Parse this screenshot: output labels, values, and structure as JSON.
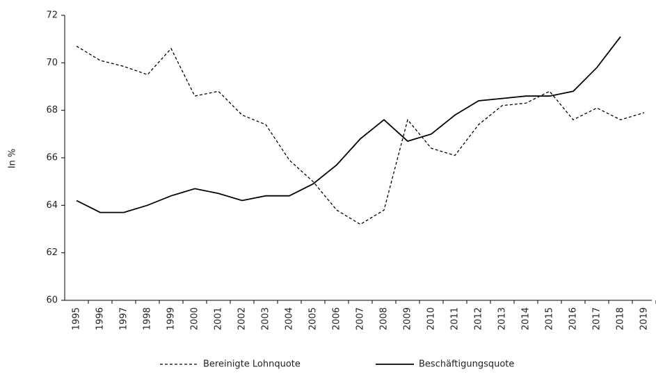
{
  "chart_data": {
    "type": "line",
    "y_label": "In %",
    "categories": [
      "1995",
      "1996",
      "1997",
      "1998",
      "1999",
      "2000",
      "2001",
      "2002",
      "2003",
      "2004",
      "2005",
      "2006",
      "2007",
      "2008",
      "2009",
      "2010",
      "2011",
      "2012",
      "2013",
      "2014",
      "2015",
      "2016",
      "2017",
      "2018",
      "2019"
    ],
    "series": [
      {
        "name": "Bereinigte Lohnquote",
        "color": "#000000",
        "dash": true,
        "values": [
          70.7,
          70.1,
          69.85,
          69.5,
          70.6,
          68.6,
          68.8,
          67.8,
          67.4,
          65.9,
          65.0,
          63.8,
          63.2,
          63.8,
          67.6,
          66.4,
          66.1,
          67.4,
          68.2,
          68.3,
          68.8,
          67.6,
          68.1,
          67.6,
          67.9
        ]
      },
      {
        "name": "Beschäftigungsquote",
        "color": "#000000",
        "dash": false,
        "values": [
          64.2,
          63.7,
          63.7,
          64.0,
          64.4,
          64.7,
          64.5,
          64.2,
          64.4,
          64.4,
          64.9,
          65.7,
          66.8,
          67.6,
          66.7,
          67.0,
          67.8,
          68.4,
          68.5,
          68.6,
          68.6,
          68.8,
          69.8,
          71.1,
          null
        ]
      }
    ],
    "ylim": [
      60,
      72
    ],
    "yticks": [
      60,
      62,
      64,
      66,
      68,
      70,
      72
    ],
    "grid": false,
    "legend": "bottom"
  }
}
